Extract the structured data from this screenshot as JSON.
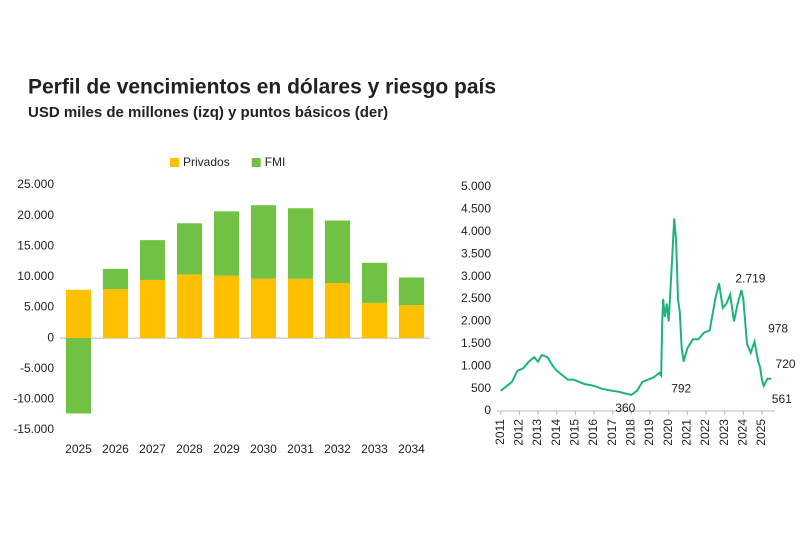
{
  "title": "Perfil de vencimientos en dólares y riesgo país",
  "subtitle": "USD miles de millones (izq) y puntos básicos (der)",
  "chart_data": [
    {
      "type": "bar",
      "stacked": true,
      "categories": [
        "2025",
        "2026",
        "2027",
        "2028",
        "2029",
        "2030",
        "2031",
        "2032",
        "2033",
        "2034"
      ],
      "series": [
        {
          "name": "Privados",
          "color": "#ffc000",
          "values": [
            7900,
            8000,
            9500,
            10400,
            10200,
            9700,
            9700,
            9000,
            5750,
            5400
          ]
        },
        {
          "name": "FMI",
          "color": "#70c144",
          "values": [
            -12300,
            3300,
            6500,
            8350,
            10500,
            12000,
            11500,
            10200,
            6550,
            4500
          ]
        }
      ],
      "ylim": [
        -15000,
        25000
      ],
      "yticks": [
        {
          "value": -15000,
          "label": "-15.000"
        },
        {
          "value": -10000,
          "label": "-10.000"
        },
        {
          "value": -5000,
          "label": "-5.000"
        },
        0,
        {
          "value": 5000,
          "label": "5.000"
        },
        {
          "value": 10000,
          "label": "10.000"
        },
        {
          "value": 15000,
          "label": "15.000"
        },
        {
          "value": 20000,
          "label": "20.000"
        },
        {
          "value": 25000,
          "label": "25.000"
        }
      ],
      "legend": "top"
    },
    {
      "type": "line",
      "x": [
        2011.0,
        2011.3,
        2011.6,
        2011.9,
        2012.2,
        2012.5,
        2012.8,
        2013.0,
        2013.2,
        2013.5,
        2013.8,
        2014.0,
        2014.3,
        2014.6,
        2014.9,
        2015.2,
        2015.5,
        2015.8,
        2016.1,
        2016.4,
        2016.7,
        2017.0,
        2017.3,
        2017.6,
        2017.9,
        2018.0,
        2018.3,
        2018.6,
        2018.9,
        2019.2,
        2019.5,
        2019.6,
        2019.65,
        2019.7,
        2019.8,
        2019.9,
        2020.0,
        2020.2,
        2020.3,
        2020.4,
        2020.5,
        2020.6,
        2020.7,
        2020.8,
        2021.0,
        2021.3,
        2021.6,
        2021.9,
        2022.2,
        2022.5,
        2022.7,
        2022.9,
        2023.1,
        2023.3,
        2023.5,
        2023.7,
        2023.9,
        2024.0,
        2024.2,
        2024.4,
        2024.6,
        2024.8,
        2024.9,
        2025.0,
        2025.1,
        2025.3,
        2025.5
      ],
      "series": [
        {
          "name": "Riesgo país",
          "color": "#1fb37a",
          "values": [
            450,
            550,
            650,
            900,
            950,
            1100,
            1200,
            1100,
            1250,
            1200,
            1000,
            900,
            800,
            700,
            700,
            650,
            600,
            580,
            550,
            500,
            470,
            450,
            430,
            400,
            370,
            360,
            450,
            650,
            700,
            750,
            850,
            792,
            1900,
            2500,
            2100,
            2400,
            2000,
            3500,
            4300,
            3800,
            2500,
            2200,
            1400,
            1100,
            1400,
            1600,
            1600,
            1750,
            1800,
            2500,
            2850,
            2300,
            2400,
            2600,
            2000,
            2400,
            2700,
            2500,
            1500,
            1300,
            1550,
            1100,
            978,
            700,
            561,
            720,
            720
          ]
        }
      ],
      "xlim": [
        2010.8,
        2025.7
      ],
      "xticks": [
        2011,
        2012,
        2013,
        2014,
        2015,
        2016,
        2017,
        2018,
        2019,
        2020,
        2021,
        2022,
        2023,
        2024,
        2025
      ],
      "ylim": [
        0,
        5000
      ],
      "yticks": [
        0,
        {
          "value": 500,
          "label": "500"
        },
        {
          "value": 1000,
          "label": "1.000"
        },
        {
          "value": 1500,
          "label": "1.500"
        },
        {
          "value": 2000,
          "label": "2.000"
        },
        {
          "value": 2500,
          "label": "2.500"
        },
        {
          "value": 3000,
          "label": "3.000"
        },
        {
          "value": 3500,
          "label": "3.500"
        },
        {
          "value": 4000,
          "label": "4.000"
        },
        {
          "value": 4500,
          "label": "4.500"
        },
        {
          "value": 5000,
          "label": "5.000"
        }
      ],
      "annotations": [
        {
          "label": "360",
          "value": 360,
          "x": 2018.0
        },
        {
          "label": "792",
          "value": 792,
          "x": 2019.6
        },
        {
          "label": "2.719",
          "value": 2719,
          "x": 2023.9
        },
        {
          "label": "978",
          "value": 978,
          "x": 2024.9
        },
        {
          "label": "720",
          "value": 720,
          "x": 2025.3
        },
        {
          "label": "561",
          "value": 561,
          "x": 2025.1
        }
      ]
    }
  ]
}
